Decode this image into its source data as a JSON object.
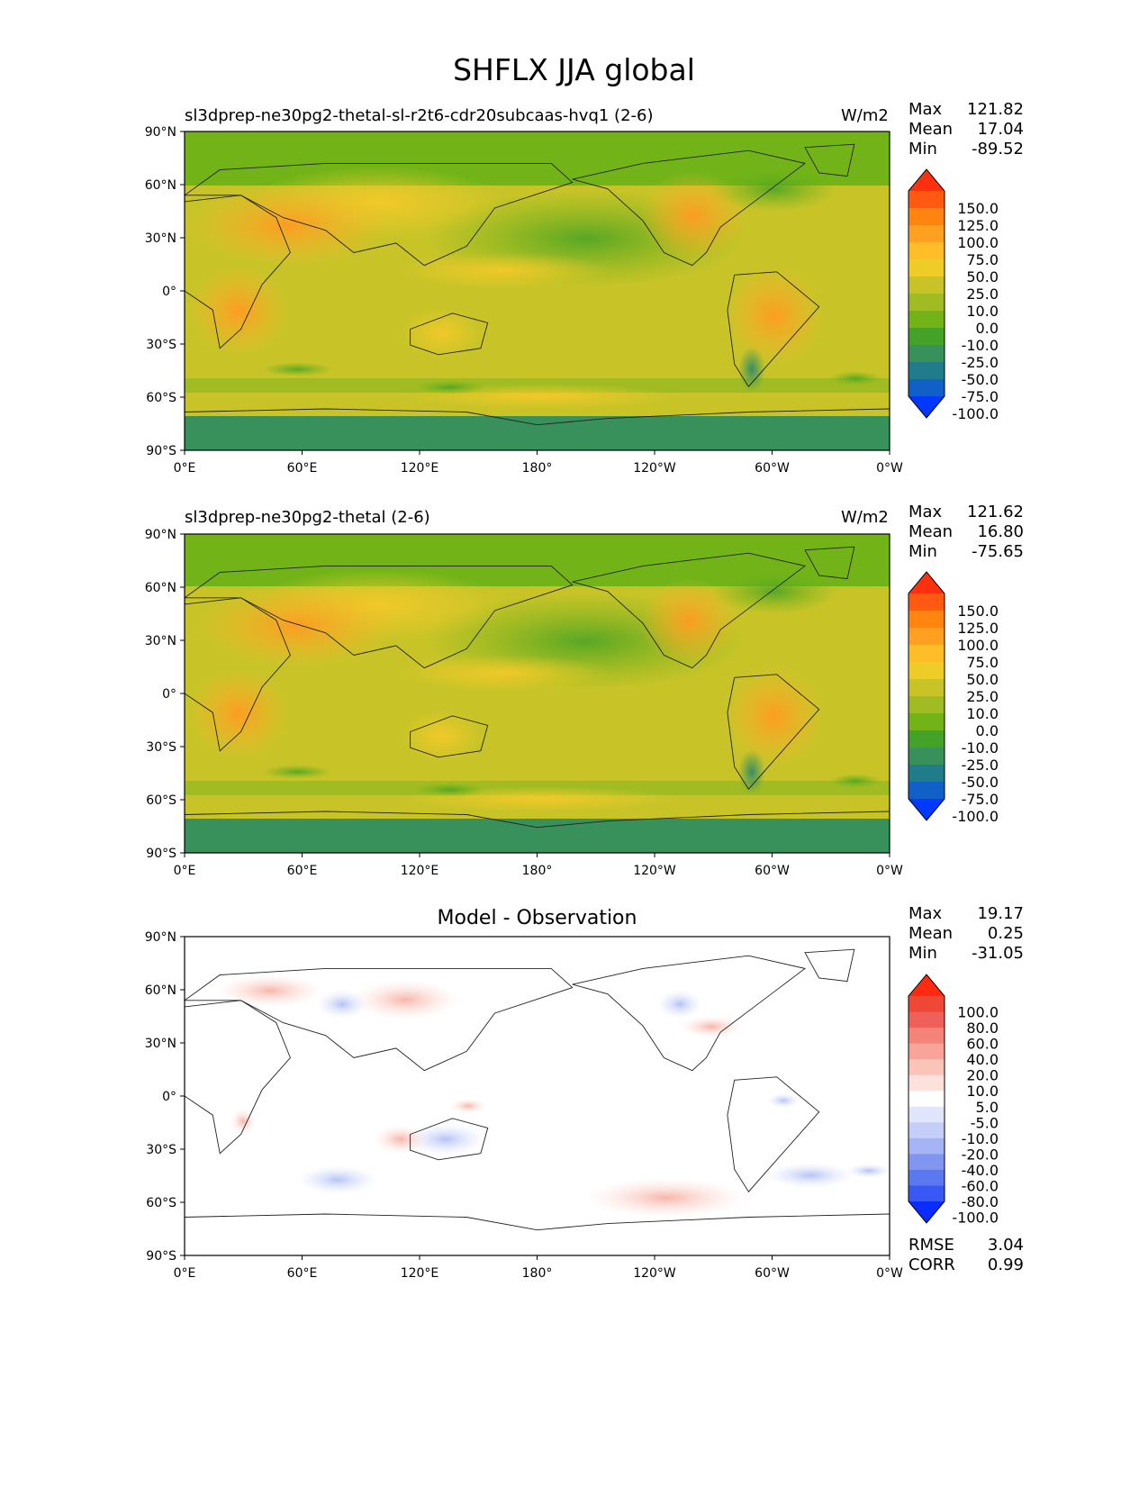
{
  "figure_title": "SHFLX JJA global",
  "chart_data": [
    {
      "type": "heatmap",
      "panel_title": "sl3dprep-ne30pg2-thetal-sl-r2t6-cdr20subcaas-hvq1 (2-6)",
      "units": "W/m2",
      "stats": {
        "max_label": "Max",
        "max": "121.82",
        "mean_label": "Mean",
        "mean": "17.04",
        "min_label": "Min",
        "min": "-89.52"
      },
      "xticks": [
        "0°E",
        "60°E",
        "120°E",
        "180°",
        "120°W",
        "60°W",
        "0°W"
      ],
      "yticks": [
        "90°N",
        "60°N",
        "30°N",
        "0°",
        "30°S",
        "60°S",
        "90°S"
      ],
      "colorbar": {
        "levels": [
          "150.0",
          "125.0",
          "100.0",
          "75.0",
          "50.0",
          "25.0",
          "10.0",
          "0.0",
          "-10.0",
          "-25.0",
          "-50.0",
          "-75.0",
          "-100.0"
        ],
        "colors": [
          "#ff3010",
          "#ff5a10",
          "#ff8410",
          "#ffa020",
          "#ffbe28",
          "#f0cc28",
          "#c8c428",
          "#a0bc22",
          "#72b418",
          "#44a228",
          "#38905a",
          "#207c8a",
          "#1060c8",
          "#0038ff"
        ]
      }
    },
    {
      "type": "heatmap",
      "panel_title": "sl3dprep-ne30pg2-thetal (2-6)",
      "units": "W/m2",
      "stats": {
        "max_label": "Max",
        "max": "121.62",
        "mean_label": "Mean",
        "mean": "16.80",
        "min_label": "Min",
        "min": "-75.65"
      },
      "xticks": [
        "0°E",
        "60°E",
        "120°E",
        "180°",
        "120°W",
        "60°W",
        "0°W"
      ],
      "yticks": [
        "90°N",
        "60°N",
        "30°N",
        "0°",
        "30°S",
        "60°S",
        "90°S"
      ],
      "colorbar": {
        "levels": [
          "150.0",
          "125.0",
          "100.0",
          "75.0",
          "50.0",
          "25.0",
          "10.0",
          "0.0",
          "-10.0",
          "-25.0",
          "-50.0",
          "-75.0",
          "-100.0"
        ],
        "colors": [
          "#ff3010",
          "#ff5a10",
          "#ff8410",
          "#ffa020",
          "#ffbe28",
          "#f0cc28",
          "#c8c428",
          "#a0bc22",
          "#72b418",
          "#44a228",
          "#38905a",
          "#207c8a",
          "#1060c8",
          "#0038ff"
        ]
      }
    },
    {
      "type": "heatmap",
      "panel_title": "Model - Observation",
      "units": "",
      "stats": {
        "max_label": "Max",
        "max": "19.17",
        "mean_label": "Mean",
        "mean": "0.25",
        "min_label": "Min",
        "min": "-31.05"
      },
      "xticks": [
        "0°E",
        "60°E",
        "120°E",
        "180°",
        "120°W",
        "60°W",
        "0°W"
      ],
      "yticks": [
        "90°N",
        "60°N",
        "30°N",
        "0°",
        "30°S",
        "60°S",
        "90°S"
      ],
      "colorbar": {
        "levels": [
          "100.0",
          "80.0",
          "60.0",
          "40.0",
          "20.0",
          "10.0",
          "5.0",
          "-5.0",
          "-10.0",
          "-20.0",
          "-40.0",
          "-60.0",
          "-80.0",
          "-100.0"
        ],
        "colors": [
          "#ff2a10",
          "#f04836",
          "#f0605a",
          "#f48478",
          "#f8a498",
          "#fac4b8",
          "#fde2dc",
          "#ffffff",
          "#e0e6fc",
          "#c4cef8",
          "#a4b4f4",
          "#8096f0",
          "#5c78f0",
          "#3a58f4",
          "#0a2cff"
        ]
      },
      "error_stats": {
        "rmse_label": "RMSE",
        "rmse": "3.04",
        "corr_label": "CORR",
        "corr": "0.99"
      }
    }
  ]
}
